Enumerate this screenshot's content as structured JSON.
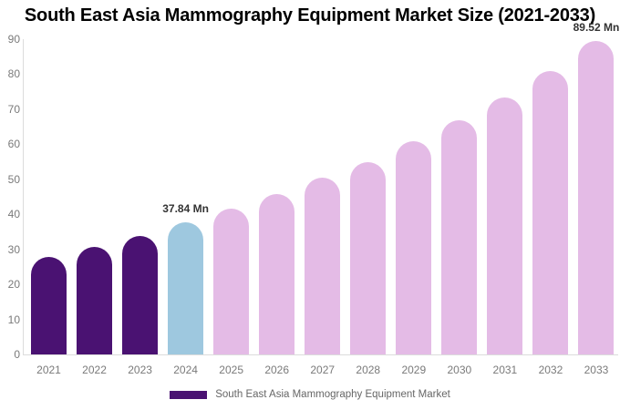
{
  "title": "South East Asia Mammography Equipment Market Size (2021-2033)",
  "legend": {
    "label": "South East Asia Mammography Equipment Market",
    "swatch_color": "#4A1272"
  },
  "colors": {
    "historical": "#4A1272",
    "current": "#9EC8DF",
    "forecast": "#E4BBE6",
    "axis_line": "#DCDCDC",
    "tick_text": "#7A7A7A",
    "bar_label_text": "#333333"
  },
  "chart_data": {
    "type": "bar",
    "title": "South East Asia Mammography Equipment Market Size (2021-2033)",
    "categories": [
      "2021",
      "2022",
      "2023",
      "2024",
      "2025",
      "2026",
      "2027",
      "2028",
      "2029",
      "2030",
      "2031",
      "2032",
      "2033"
    ],
    "series": [
      {
        "name": "South East Asia Mammography Equipment Market",
        "values": [
          27.9,
          30.8,
          33.9,
          37.84,
          41.6,
          45.8,
          50.4,
          54.9,
          60.9,
          66.8,
          73.4,
          80.9,
          89.52
        ]
      }
    ],
    "unit": "Mn",
    "xlabel": "",
    "ylabel": "",
    "ylim": [
      0,
      90
    ],
    "yticks": [
      0,
      10,
      20,
      30,
      40,
      50,
      60,
      70,
      80,
      90
    ],
    "grid": false,
    "legend_position": "bottom",
    "bar_segments": [
      "historical",
      "historical",
      "historical",
      "current",
      "forecast",
      "forecast",
      "forecast",
      "forecast",
      "forecast",
      "forecast",
      "forecast",
      "forecast",
      "forecast"
    ],
    "data_labels": [
      {
        "category": "2024",
        "text": "37.84 Mn"
      },
      {
        "category": "2033",
        "text": "89.52 Mn"
      }
    ]
  }
}
